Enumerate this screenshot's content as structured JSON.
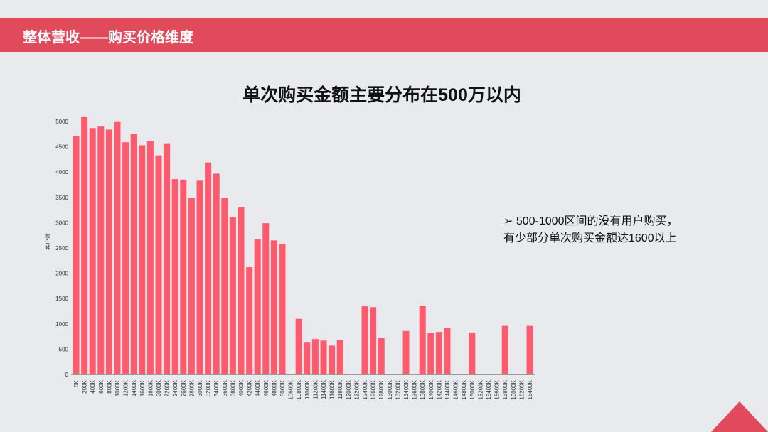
{
  "header": {
    "title": "整体营收——购买价格维度"
  },
  "note": [
    "➢  500-1000区间的没有用户购买，",
    "有少部分单次购买金额达1600以上"
  ],
  "chart_data": {
    "type": "bar",
    "title": "单次购买金额主要分布在500万以内",
    "y_label": "客户数",
    "color": "#ff5a6e",
    "categories": [
      "0K",
      "200K",
      "400K",
      "600K",
      "800K",
      "1000K",
      "1200K",
      "1400K",
      "1600K",
      "1800K",
      "2000K",
      "2200K",
      "2400K",
      "2600K",
      "2800K",
      "3000K",
      "3200K",
      "3400K",
      "3600K",
      "3800K",
      "4000K",
      "4200K",
      "4400K",
      "4600K",
      "4800K",
      "5000K",
      "10600K",
      "10800K",
      "11000K",
      "11200K",
      "11400K",
      "11600K",
      "11800K",
      "12000K",
      "12200K",
      "12400K",
      "12600K",
      "12800K",
      "13000K",
      "13200K",
      "13400K",
      "13600K",
      "13800K",
      "14000K",
      "14200K",
      "14400K",
      "14600K",
      "14800K",
      "15000K",
      "15200K",
      "15400K",
      "15600K",
      "15800K",
      "16000K",
      "16200K",
      "16400K"
    ],
    "values": [
      4720,
      5100,
      4870,
      4900,
      4840,
      4990,
      4590,
      4760,
      4530,
      4610,
      4330,
      4570,
      3860,
      3850,
      3490,
      3830,
      4190,
      3970,
      3490,
      3110,
      3300,
      2120,
      2680,
      2990,
      2650,
      2580,
      0,
      1100,
      630,
      700,
      670,
      570,
      680,
      0,
      0,
      1350,
      1330,
      720,
      0,
      0,
      860,
      0,
      1360,
      820,
      840,
      920,
      0,
      0,
      830,
      0,
      0,
      0,
      960,
      0,
      0,
      960
    ],
    "ylim": [
      0,
      5000
    ],
    "yticks": [
      0,
      500,
      1000,
      1500,
      2000,
      2500,
      3000,
      3500,
      4000,
      4500,
      5000
    ],
    "grid": false
  }
}
